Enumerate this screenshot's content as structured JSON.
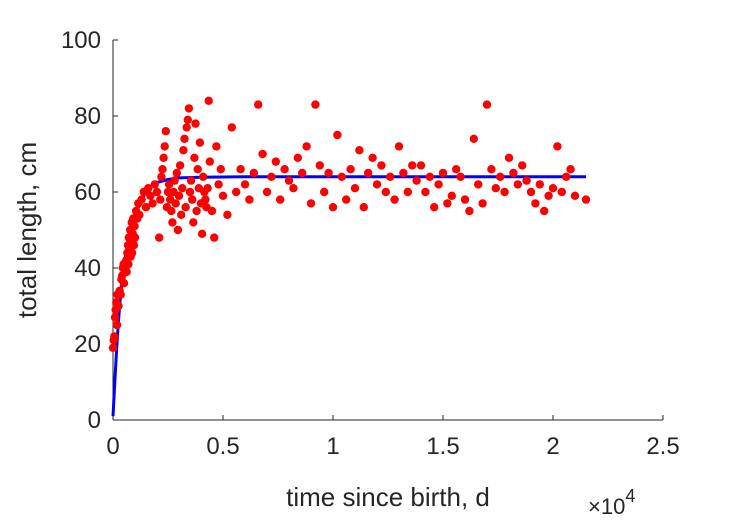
{
  "chart_data": {
    "type": "scatter",
    "title": "",
    "xlabel": "time since birth, d",
    "ylabel": "total length, cm",
    "xlim": [
      0,
      25000
    ],
    "ylim": [
      0,
      100
    ],
    "x_tick_values": [
      0,
      5000,
      10000,
      15000,
      20000,
      25000
    ],
    "x_tick_labels": [
      "0",
      "0.5",
      "1",
      "1.5",
      "2",
      "2.5"
    ],
    "y_tick_values": [
      0,
      20,
      40,
      60,
      80,
      100
    ],
    "y_tick_labels": [
      "0",
      "20",
      "40",
      "60",
      "80",
      "100"
    ],
    "x_multiplier": {
      "base": "×10",
      "exponent": "4"
    },
    "grid": false,
    "legend": "none",
    "series": [
      {
        "type": "scatter",
        "color": "#ff0000",
        "points": [
          [
            0,
            19
          ],
          [
            30,
            21
          ],
          [
            60,
            22
          ],
          [
            90,
            27
          ],
          [
            120,
            29
          ],
          [
            150,
            31
          ],
          [
            180,
            25
          ],
          [
            200,
            33
          ],
          [
            250,
            30
          ],
          [
            300,
            34
          ],
          [
            350,
            33
          ],
          [
            380,
            37
          ],
          [
            420,
            38
          ],
          [
            450,
            40
          ],
          [
            480,
            41
          ],
          [
            500,
            36
          ],
          [
            530,
            39
          ],
          [
            560,
            40
          ],
          [
            600,
            42
          ],
          [
            620,
            39
          ],
          [
            650,
            44
          ],
          [
            680,
            46
          ],
          [
            700,
            41
          ],
          [
            720,
            48
          ],
          [
            750,
            45
          ],
          [
            780,
            50
          ],
          [
            800,
            43
          ],
          [
            820,
            47
          ],
          [
            850,
            52
          ],
          [
            870,
            44
          ],
          [
            900,
            49
          ],
          [
            920,
            53
          ],
          [
            950,
            46
          ],
          [
            980,
            51
          ],
          [
            1000,
            48
          ],
          [
            1050,
            55
          ],
          [
            1100,
            53
          ],
          [
            1150,
            57
          ],
          [
            1200,
            54
          ],
          [
            1300,
            58
          ],
          [
            1400,
            60
          ],
          [
            1500,
            56
          ],
          [
            1600,
            61
          ],
          [
            1700,
            59
          ],
          [
            1800,
            57
          ],
          [
            1900,
            62
          ],
          [
            2000,
            60
          ],
          [
            2100,
            48
          ],
          [
            2150,
            58
          ],
          [
            2200,
            64
          ],
          [
            2250,
            66
          ],
          [
            2300,
            69
          ],
          [
            2350,
            72
          ],
          [
            2400,
            76
          ],
          [
            2450,
            56
          ],
          [
            2500,
            60
          ],
          [
            2550,
            62
          ],
          [
            2600,
            58
          ],
          [
            2650,
            55
          ],
          [
            2700,
            52
          ],
          [
            2750,
            60
          ],
          [
            2800,
            63
          ],
          [
            2850,
            57
          ],
          [
            2900,
            65
          ],
          [
            2950,
            50
          ],
          [
            3000,
            59
          ],
          [
            3050,
            67
          ],
          [
            3100,
            54
          ],
          [
            3150,
            61
          ],
          [
            3200,
            71
          ],
          [
            3250,
            74
          ],
          [
            3300,
            56
          ],
          [
            3350,
            77
          ],
          [
            3400,
            79
          ],
          [
            3450,
            82
          ],
          [
            3500,
            60
          ],
          [
            3550,
            63
          ],
          [
            3600,
            58
          ],
          [
            3650,
            52
          ],
          [
            3700,
            69
          ],
          [
            3750,
            78
          ],
          [
            3800,
            55
          ],
          [
            3850,
            66
          ],
          [
            3900,
            61
          ],
          [
            3950,
            73
          ],
          [
            4000,
            57
          ],
          [
            4050,
            49
          ],
          [
            4100,
            64
          ],
          [
            4150,
            60
          ],
          [
            4200,
            58
          ],
          [
            4250,
            56
          ],
          [
            4300,
            61
          ],
          [
            4350,
            84
          ],
          [
            4400,
            68
          ],
          [
            4500,
            55
          ],
          [
            4600,
            48
          ],
          [
            4700,
            72
          ],
          [
            4800,
            62
          ],
          [
            4900,
            66
          ],
          [
            5000,
            59
          ],
          [
            5200,
            54
          ],
          [
            5400,
            77
          ],
          [
            5600,
            60
          ],
          [
            5800,
            66
          ],
          [
            6000,
            62
          ],
          [
            6200,
            58
          ],
          [
            6400,
            65
          ],
          [
            6600,
            83
          ],
          [
            6800,
            70
          ],
          [
            7000,
            60
          ],
          [
            7200,
            64
          ],
          [
            7400,
            68
          ],
          [
            7600,
            58
          ],
          [
            7800,
            66
          ],
          [
            8000,
            63
          ],
          [
            8200,
            61
          ],
          [
            8400,
            69
          ],
          [
            8600,
            65
          ],
          [
            8800,
            72
          ],
          [
            9000,
            57
          ],
          [
            9200,
            83
          ],
          [
            9400,
            67
          ],
          [
            9600,
            60
          ],
          [
            9800,
            65
          ],
          [
            10000,
            56
          ],
          [
            10200,
            75
          ],
          [
            10400,
            64
          ],
          [
            10600,
            58
          ],
          [
            10800,
            66
          ],
          [
            11000,
            61
          ],
          [
            11200,
            71
          ],
          [
            11400,
            56
          ],
          [
            11600,
            65
          ],
          [
            11800,
            69
          ],
          [
            12000,
            62
          ],
          [
            12200,
            67
          ],
          [
            12400,
            60
          ],
          [
            12600,
            64
          ],
          [
            12800,
            58
          ],
          [
            13000,
            72
          ],
          [
            13200,
            65
          ],
          [
            13400,
            60
          ],
          [
            13600,
            67
          ],
          [
            13800,
            63
          ],
          [
            14000,
            67
          ],
          [
            14200,
            60
          ],
          [
            14400,
            64
          ],
          [
            14600,
            56
          ],
          [
            14800,
            62
          ],
          [
            15000,
            65
          ],
          [
            15200,
            57
          ],
          [
            15400,
            59
          ],
          [
            15600,
            66
          ],
          [
            15800,
            64
          ],
          [
            16000,
            58
          ],
          [
            16200,
            55
          ],
          [
            16400,
            74
          ],
          [
            16600,
            62
          ],
          [
            16800,
            57
          ],
          [
            17000,
            83
          ],
          [
            17200,
            66
          ],
          [
            17400,
            61
          ],
          [
            17600,
            64
          ],
          [
            17800,
            60
          ],
          [
            18000,
            69
          ],
          [
            18200,
            65
          ],
          [
            18400,
            62
          ],
          [
            18600,
            67
          ],
          [
            18800,
            63
          ],
          [
            19000,
            60
          ],
          [
            19200,
            57
          ],
          [
            19400,
            62
          ],
          [
            19600,
            55
          ],
          [
            19800,
            59
          ],
          [
            20000,
            61
          ],
          [
            20200,
            72
          ],
          [
            20400,
            60
          ],
          [
            20600,
            64
          ],
          [
            20800,
            66
          ],
          [
            21000,
            59
          ],
          [
            21500,
            58
          ]
        ]
      },
      {
        "type": "line",
        "color": "#0000ff",
        "points": [
          [
            0,
            1
          ],
          [
            100,
            12
          ],
          [
            200,
            22
          ],
          [
            300,
            30
          ],
          [
            400,
            36
          ],
          [
            500,
            41
          ],
          [
            700,
            47
          ],
          [
            1000,
            54
          ],
          [
            1300,
            58
          ],
          [
            1600,
            61
          ],
          [
            2000,
            62.5
          ],
          [
            2500,
            63.3
          ],
          [
            3000,
            63.7
          ],
          [
            4000,
            63.9
          ],
          [
            6000,
            64
          ],
          [
            10000,
            64
          ],
          [
            15000,
            64
          ],
          [
            20000,
            64
          ],
          [
            21500,
            64
          ]
        ]
      }
    ]
  }
}
